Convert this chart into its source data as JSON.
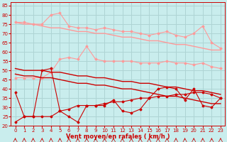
{
  "x": [
    0,
    1,
    2,
    3,
    4,
    5,
    6,
    7,
    8,
    9,
    10,
    11,
    12,
    13,
    14,
    15,
    16,
    17,
    18,
    19,
    20,
    21,
    22,
    23
  ],
  "line_light1": [
    76,
    76,
    75,
    75,
    80,
    81,
    74,
    73,
    73,
    72,
    73,
    72,
    71,
    71,
    70,
    69,
    70,
    71,
    69,
    68,
    70,
    74,
    65,
    62
  ],
  "line_light2_trend": [
    76,
    75,
    75,
    74,
    73,
    73,
    72,
    71,
    71,
    70,
    70,
    69,
    68,
    68,
    67,
    66,
    66,
    65,
    64,
    64,
    63,
    62,
    61,
    61
  ],
  "line_light3": [
    46,
    46,
    46,
    46,
    49,
    56,
    57,
    56,
    63,
    56,
    55,
    55,
    55,
    55,
    54,
    54,
    54,
    55,
    54,
    54,
    53,
    54,
    52,
    51
  ],
  "line_dark1": [
    51,
    50,
    50,
    50,
    49,
    49,
    48,
    47,
    47,
    46,
    46,
    45,
    44,
    44,
    43,
    43,
    42,
    41,
    41,
    40,
    39,
    39,
    38,
    37
  ],
  "line_dark2": [
    48,
    47,
    47,
    46,
    46,
    45,
    44,
    43,
    43,
    42,
    42,
    41,
    40,
    40,
    39,
    38,
    37,
    36,
    36,
    35,
    34,
    33,
    32,
    32
  ],
  "line_dark3": [
    38,
    25,
    25,
    50,
    51,
    28,
    25,
    22,
    31,
    31,
    31,
    34,
    28,
    27,
    29,
    35,
    40,
    41,
    40,
    34,
    40,
    31,
    30,
    35
  ],
  "line_dark4": [
    22,
    25,
    25,
    25,
    25,
    28,
    29,
    31,
    31,
    31,
    32,
    33,
    33,
    34,
    35,
    35,
    36,
    36,
    37,
    37,
    38,
    38,
    37,
    35
  ],
  "bg_color": "#c9eded",
  "grid_color": "#aed4d4",
  "line_color_dark": "#cc0000",
  "line_color_light": "#ff9999",
  "xlabel": "Vent moyen/en rafales ( km/h )",
  "ylim": [
    20,
    87
  ],
  "xlim": [
    -0.5,
    23.5
  ],
  "yticks": [
    20,
    25,
    30,
    35,
    40,
    45,
    50,
    55,
    60,
    65,
    70,
    75,
    80,
    85
  ],
  "xticks": [
    0,
    1,
    2,
    3,
    4,
    5,
    6,
    7,
    8,
    9,
    10,
    11,
    12,
    13,
    14,
    15,
    16,
    17,
    18,
    19,
    20,
    21,
    22,
    23
  ]
}
